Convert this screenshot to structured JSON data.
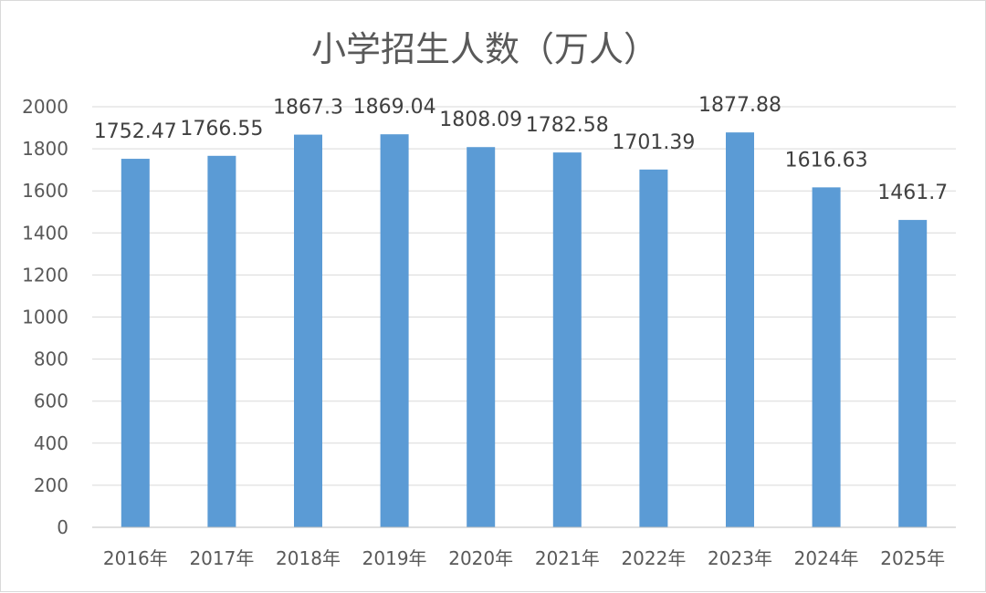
{
  "chart_data": {
    "type": "bar",
    "title": "小学招生人数（万人）",
    "categories": [
      "2016年",
      "2017年",
      "2018年",
      "2019年",
      "2020年",
      "2021年",
      "2022年",
      "2023年",
      "2024年",
      "2025年"
    ],
    "values": [
      1752.47,
      1766.55,
      1867.3,
      1869.04,
      1808.09,
      1782.58,
      1701.39,
      1877.88,
      1616.63,
      1461.7
    ],
    "value_labels": [
      "1752.47",
      "1766.55",
      "1867.3",
      "1869.04",
      "1808.09",
      "1782.58",
      "1701.39",
      "1877.88",
      "1616.63",
      "1461.7"
    ],
    "ylim": [
      0,
      2000
    ],
    "yticks": [
      0,
      200,
      400,
      600,
      800,
      1000,
      1200,
      1400,
      1600,
      1800,
      2000
    ],
    "grid": true,
    "legend": "none",
    "colors": {
      "bar": "#5b9bd5",
      "grid": "#d9d9d9",
      "axis": "#bfbfbf"
    }
  }
}
